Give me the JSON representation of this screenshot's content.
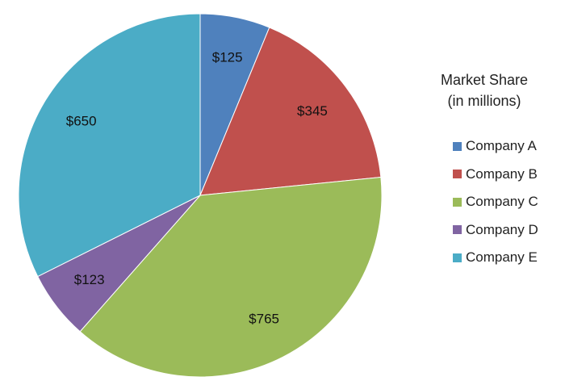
{
  "chart_data": {
    "type": "pie",
    "title": "",
    "legend_title": [
      "Market Share",
      "(in millions)"
    ],
    "legend_position": "right",
    "categories": [
      "Company A",
      "Company B",
      "Company C",
      "Company D",
      "Company E"
    ],
    "values": [
      125,
      345,
      765,
      123,
      650
    ],
    "data_labels": [
      "$125",
      "$345",
      "$765",
      "$123",
      "$650"
    ],
    "colors": [
      "#4F81BD",
      "#C0504D",
      "#9BBB59",
      "#8064A2",
      "#4BACC6"
    ],
    "start_angle_deg": 0,
    "direction": "clockwise"
  }
}
